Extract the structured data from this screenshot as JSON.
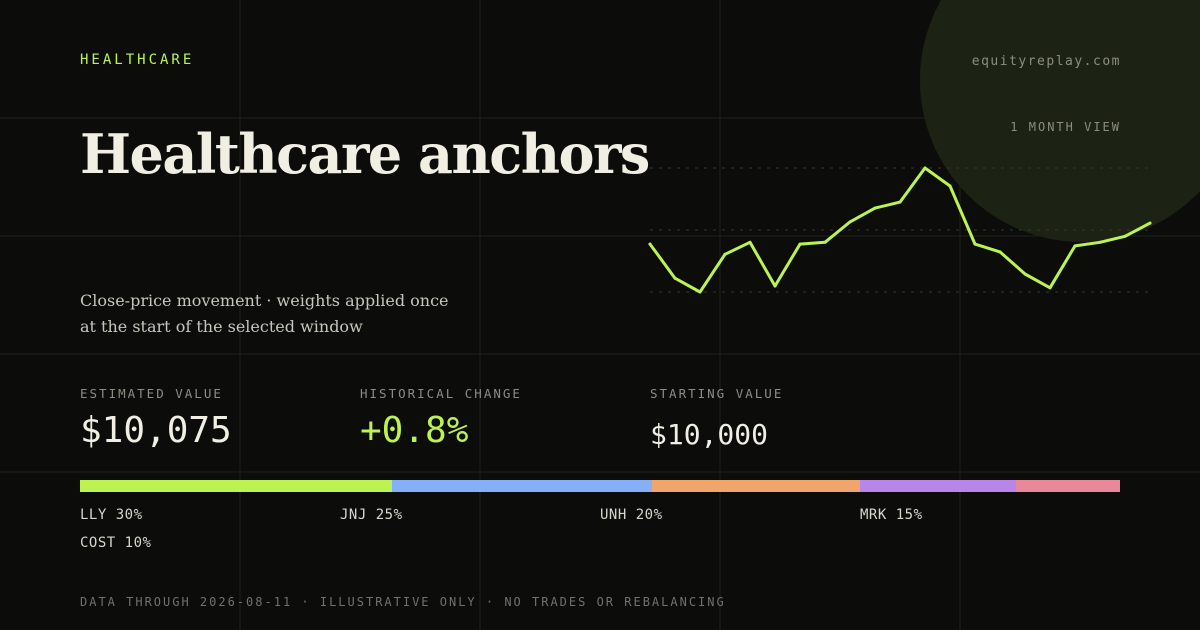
{
  "category": "HEALTHCARE",
  "site": "equityreplay.com",
  "range_label": "1 MONTH VIEW",
  "title": "Healthcare anchors",
  "subtitle": "Close-price movement · weights applied once at the start of the selected window",
  "stats": {
    "estimated": {
      "label": "ESTIMATED VALUE",
      "value": "$10,075"
    },
    "change": {
      "label": "HISTORICAL CHANGE",
      "value": "+0.8%"
    },
    "starting": {
      "label": "STARTING VALUE",
      "value": "$10,000"
    }
  },
  "allocation": [
    {
      "ticker": "LLY",
      "weight": 30,
      "label": "LLY 30%",
      "color": "#bdf350"
    },
    {
      "ticker": "JNJ",
      "weight": 25,
      "label": "JNJ 25%",
      "color": "#86aff9"
    },
    {
      "ticker": "UNH",
      "weight": 20,
      "label": "UNH 20%",
      "color": "#f0a56b"
    },
    {
      "ticker": "MRK",
      "weight": 15,
      "label": "MRK 15%",
      "color": "#b886e8"
    },
    {
      "ticker": "COST",
      "weight": 10,
      "label": "COST 10%",
      "color": "#e8899a"
    }
  ],
  "footer": "DATA THROUGH 2026-08-11 · ILLUSTRATIVE ONLY · NO TRADES OR REBALANCING",
  "chart_data": {
    "type": "line",
    "title": "",
    "xlabel": "",
    "ylabel": "",
    "x": [
      1,
      2,
      3,
      4,
      5,
      6,
      7,
      8,
      9,
      10,
      11,
      12,
      13,
      14,
      15,
      16,
      17,
      18,
      19,
      20,
      21
    ],
    "series": [
      {
        "values": [
          10040,
          9983,
          9960,
          10023,
          10043,
          9970,
          10040,
          10043,
          10077,
          10100,
          10110,
          10167,
          10137,
          10040,
          10027,
          9990,
          9967,
          10037,
          10043,
          10053,
          10075
        ]
      }
    ],
    "ylim": [
      9960,
      10167
    ],
    "grid": false,
    "line_color": "#bdf350"
  }
}
